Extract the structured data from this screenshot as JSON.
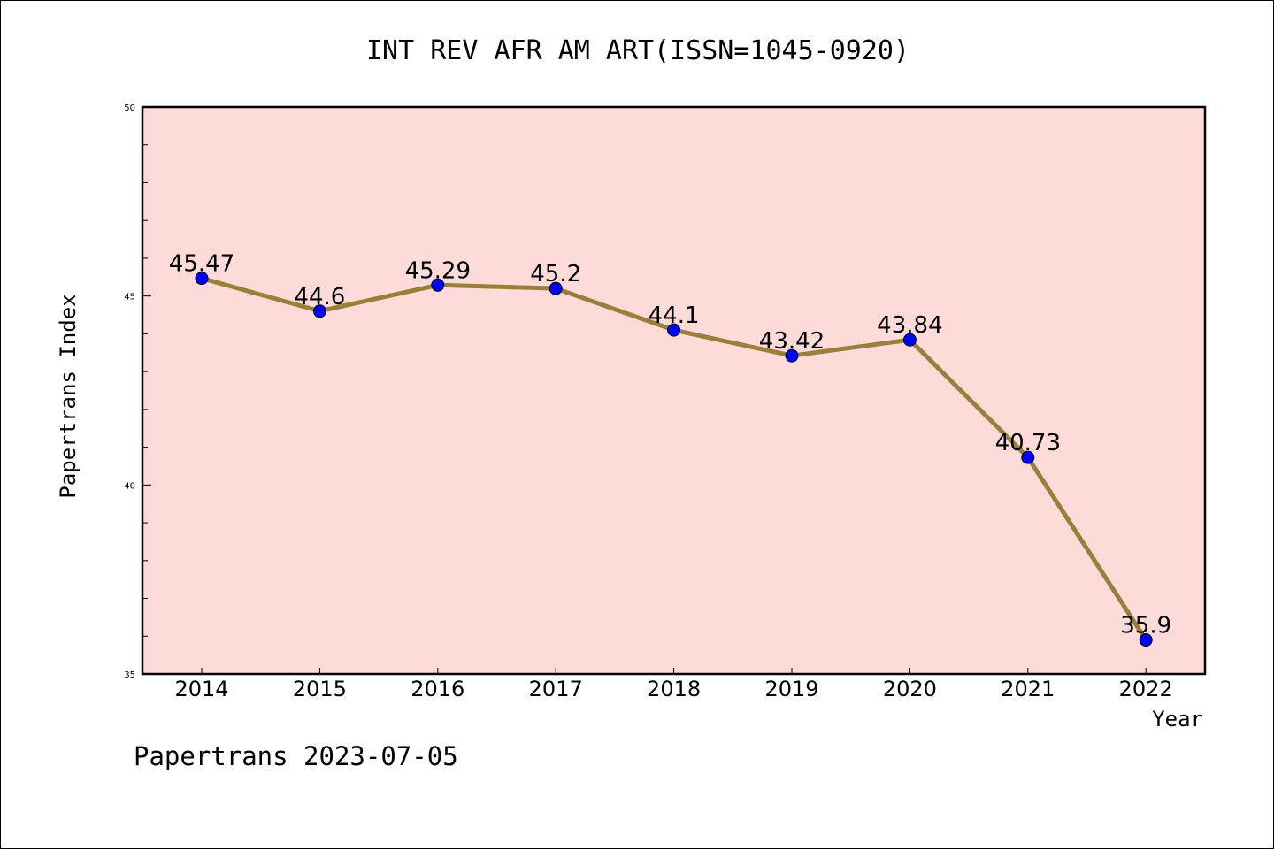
{
  "chart_data": {
    "type": "line",
    "title": "INT REV AFR AM ART(ISSN=1045-0920)",
    "xlabel": "Year",
    "ylabel": "Papertrans Index",
    "categories": [
      "2014",
      "2015",
      "2016",
      "2017",
      "2018",
      "2019",
      "2020",
      "2021",
      "2022"
    ],
    "series": [
      {
        "values": [
          45.47,
          44.6,
          45.29,
          45.2,
          44.1,
          43.42,
          43.84,
          40.73,
          35.9
        ],
        "labels": [
          "45.47",
          "44.6",
          "45.29",
          "45.2",
          "44.1",
          "43.42",
          "43.84",
          "40.73",
          "35.9"
        ]
      }
    ],
    "ylim": [
      35,
      50
    ],
    "yticks": [
      "35",
      "40",
      "45",
      "50"
    ],
    "grid": false,
    "legend": "none"
  },
  "footer": "Papertrans 2023-07-05",
  "colors": {
    "plot_background": "#fddbd8",
    "line": "#9a7f3a",
    "marker": "#0000ff"
  }
}
